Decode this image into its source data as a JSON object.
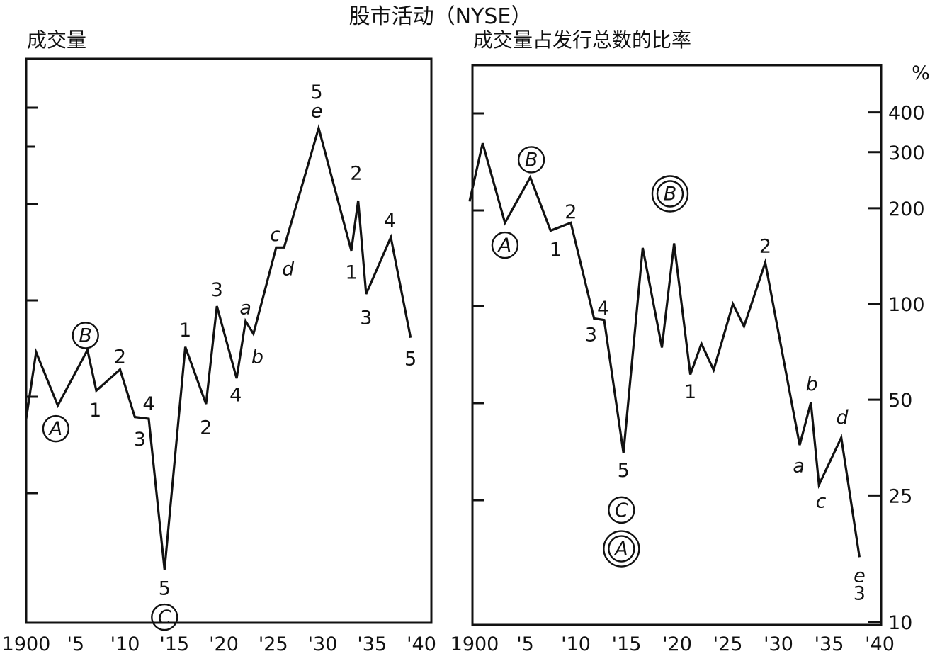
{
  "title": "股市活动（NYSE）",
  "chart_data": [
    {
      "type": "line",
      "title": "成交量",
      "x_ticks": [
        "1900",
        "'5",
        "'10",
        "'15",
        "'20",
        "'25",
        "'30",
        "'35",
        "'40"
      ],
      "x_range": [
        1900,
        1940
      ],
      "y_scale": "log",
      "y_tick_labels": [],
      "series": [
        {
          "x": [
            1900.0,
            1901.0,
            1903.2,
            1906.2,
            1907.1,
            1909.5,
            1911.0,
            1912.4,
            1914.0,
            1916.1,
            1918.2,
            1919.3,
            1921.3,
            1922.2,
            1923.0,
            1925.3,
            1926.1,
            1929.6,
            1932.9,
            1933.6,
            1934.4,
            1936.9,
            1938.9
          ],
          "y": [
            4.15,
            6.6,
            4.55,
            6.7,
            5.05,
            5.85,
            4.2,
            4.15,
            1.45,
            6.85,
            4.6,
            9.1,
            5.5,
            8.2,
            7.5,
            13.7,
            13.7,
            31.5,
            13.4,
            19.0,
            9.9,
            14.7,
            7.3
          ]
        }
      ],
      "annotations": [
        {
          "text": "A",
          "x": 1903.0,
          "y": 3.87,
          "circles": 1
        },
        {
          "text": "B",
          "x": 1906.0,
          "y": 7.42,
          "circles": 1
        },
        {
          "text": "C",
          "x": 1914.0,
          "y": 1.04,
          "circles": 1
        },
        {
          "text": "1",
          "x": 1907.0,
          "y": 4.4,
          "circles": 0
        },
        {
          "text": "2",
          "x": 1909.5,
          "y": 6.4,
          "circles": 0
        },
        {
          "text": "3",
          "x": 1911.5,
          "y": 3.6,
          "circles": 0
        },
        {
          "text": "4",
          "x": 1912.4,
          "y": 4.6,
          "circles": 0
        },
        {
          "text": "5",
          "x": 1914.0,
          "y": 1.27,
          "circles": 0
        },
        {
          "text": "1",
          "x": 1916.1,
          "y": 7.7,
          "circles": 0
        },
        {
          "text": "2",
          "x": 1918.2,
          "y": 3.9,
          "circles": 0
        },
        {
          "text": "3",
          "x": 1919.3,
          "y": 10.2,
          "circles": 0
        },
        {
          "text": "4",
          "x": 1921.2,
          "y": 4.9,
          "circles": 0
        },
        {
          "text": "a",
          "x": 1922.2,
          "y": 9.0,
          "circles": 0
        },
        {
          "text": "b",
          "x": 1923.4,
          "y": 6.4,
          "circles": 0
        },
        {
          "text": "c",
          "x": 1925.2,
          "y": 15.0,
          "circles": 0
        },
        {
          "text": "d",
          "x": 1926.5,
          "y": 11.8,
          "circles": 0
        },
        {
          "text": "5",
          "x": 1929.4,
          "y": 40.5,
          "circles": 0
        },
        {
          "text": "e",
          "x": 1929.4,
          "y": 35.5,
          "circles": 0
        },
        {
          "text": "1",
          "x": 1932.9,
          "y": 11.5,
          "circles": 0
        },
        {
          "text": "2",
          "x": 1933.4,
          "y": 23.0,
          "circles": 0
        },
        {
          "text": "3",
          "x": 1934.4,
          "y": 8.4,
          "circles": 0
        },
        {
          "text": "4",
          "x": 1936.8,
          "y": 16.5,
          "circles": 0
        },
        {
          "text": "5",
          "x": 1938.9,
          "y": 6.3,
          "circles": 0
        }
      ]
    },
    {
      "type": "line",
      "title": "成交量占发行总数的比率",
      "x_ticks": [
        "1900",
        "'5",
        "'10",
        "'15",
        "'20",
        "'25",
        "'30",
        "'35",
        "'40"
      ],
      "x_range": [
        1900,
        1940
      ],
      "y_scale": "log",
      "y_unit": "%",
      "y_ticks": [
        10,
        25,
        50,
        100,
        200,
        300,
        400
      ],
      "series": [
        {
          "x": [
            1899.5,
            1900.8,
            1903.0,
            1905.5,
            1907.5,
            1909.5,
            1911.8,
            1912.8,
            1914.7,
            1916.6,
            1918.5,
            1919.7,
            1921.3,
            1922.4,
            1923.6,
            1925.5,
            1926.6,
            1928.7,
            1932.1,
            1933.2,
            1934.0,
            1936.2,
            1938.0
          ],
          "y": [
            210,
            320,
            180,
            250,
            170,
            180,
            90,
            89,
            34,
            150,
            73,
            155,
            60,
            75,
            62,
            100,
            85,
            135,
            36,
            49,
            27,
            38,
            16
          ]
        }
      ],
      "annotations": [
        {
          "text": "A",
          "x": 1903.0,
          "y": 153,
          "circles": 1
        },
        {
          "text": "B",
          "x": 1905.6,
          "y": 284,
          "circles": 1
        },
        {
          "text": "B",
          "x": 1919.3,
          "y": 222,
          "circles": 2
        },
        {
          "text": "C",
          "x": 1914.5,
          "y": 22.5,
          "circles": 1
        },
        {
          "text": "A",
          "x": 1914.5,
          "y": 17.0,
          "circles": 2
        },
        {
          "text": "2",
          "x": 1909.5,
          "y": 195,
          "circles": 0
        },
        {
          "text": "1",
          "x": 1908.0,
          "y": 148,
          "circles": 0
        },
        {
          "text": "4",
          "x": 1912.7,
          "y": 97,
          "circles": 0
        },
        {
          "text": "3",
          "x": 1911.5,
          "y": 80,
          "circles": 0
        },
        {
          "text": "5",
          "x": 1914.7,
          "y": 30,
          "circles": 0
        },
        {
          "text": "1",
          "x": 1921.3,
          "y": 53,
          "circles": 0
        },
        {
          "text": "2",
          "x": 1928.7,
          "y": 152,
          "circles": 0
        },
        {
          "text": "b",
          "x": 1933.3,
          "y": 56,
          "circles": 0
        },
        {
          "text": "a",
          "x": 1932.0,
          "y": 31,
          "circles": 0
        },
        {
          "text": "c",
          "x": 1934.2,
          "y": 24,
          "circles": 0
        },
        {
          "text": "d",
          "x": 1936.3,
          "y": 44,
          "circles": 0
        },
        {
          "text": "e",
          "x": 1938.0,
          "y": 14.0,
          "circles": 0
        },
        {
          "text": "3",
          "x": 1938.0,
          "y": 12.3,
          "circles": 0
        }
      ]
    }
  ]
}
